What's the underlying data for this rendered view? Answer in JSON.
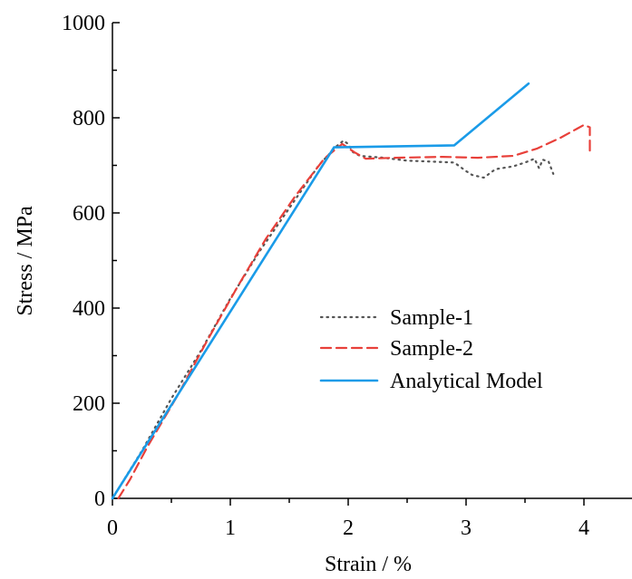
{
  "chart_data": {
    "type": "line",
    "xlabel": "Strain / %",
    "ylabel": "Stress / MPa",
    "xlim": [
      0,
      4.45
    ],
    "ylim": [
      0,
      1000
    ],
    "x_ticks": [
      0,
      1,
      2,
      3,
      4
    ],
    "y_ticks": [
      0,
      200,
      400,
      600,
      800,
      1000
    ],
    "x_tick_labels": [
      "0",
      "1",
      "2",
      "3",
      "4"
    ],
    "y_tick_labels": [
      "0",
      "200",
      "400",
      "600",
      "800",
      "1000"
    ],
    "grid": false,
    "legend_position": "center-right",
    "series": [
      {
        "name": "Sample-1",
        "color": "#555555",
        "style": "dotted",
        "points": [
          [
            0,
            0
          ],
          [
            0.25,
            100
          ],
          [
            0.5,
            210
          ],
          [
            0.75,
            310
          ],
          [
            1.0,
            420
          ],
          [
            1.25,
            520
          ],
          [
            1.5,
            610
          ],
          [
            1.75,
            700
          ],
          [
            1.9,
            740
          ],
          [
            1.96,
            752
          ],
          [
            2.0,
            745
          ],
          [
            2.04,
            728
          ],
          [
            2.1,
            720
          ],
          [
            2.3,
            716
          ],
          [
            2.5,
            710
          ],
          [
            2.7,
            708
          ],
          [
            2.9,
            706
          ],
          [
            3.0,
            688
          ],
          [
            3.05,
            680
          ],
          [
            3.15,
            674
          ],
          [
            3.25,
            692
          ],
          [
            3.4,
            698
          ],
          [
            3.5,
            706
          ],
          [
            3.58,
            714
          ],
          [
            3.62,
            694
          ],
          [
            3.65,
            712
          ],
          [
            3.7,
            708
          ],
          [
            3.74,
            682
          ]
        ]
      },
      {
        "name": "Sample-2",
        "color": "#e8403a",
        "style": "dashed",
        "points": [
          [
            0.05,
            0
          ],
          [
            0.15,
            40
          ],
          [
            0.3,
            110
          ],
          [
            0.55,
            215
          ],
          [
            0.8,
            330
          ],
          [
            1.05,
            440
          ],
          [
            1.3,
            545
          ],
          [
            1.55,
            635
          ],
          [
            1.8,
            715
          ],
          [
            1.9,
            735
          ],
          [
            1.95,
            745
          ],
          [
            2.05,
            728
          ],
          [
            2.15,
            714
          ],
          [
            2.4,
            716
          ],
          [
            2.8,
            718
          ],
          [
            3.1,
            716
          ],
          [
            3.4,
            720
          ],
          [
            3.6,
            735
          ],
          [
            3.8,
            758
          ],
          [
            4.0,
            785
          ],
          [
            4.05,
            780
          ],
          [
            4.05,
            730
          ]
        ]
      },
      {
        "name": "Analytical Model",
        "color": "#1a9be8",
        "style": "solid",
        "points": [
          [
            0,
            0
          ],
          [
            1.88,
            738
          ],
          [
            2.9,
            742
          ],
          [
            3.53,
            872
          ]
        ]
      }
    ]
  }
}
